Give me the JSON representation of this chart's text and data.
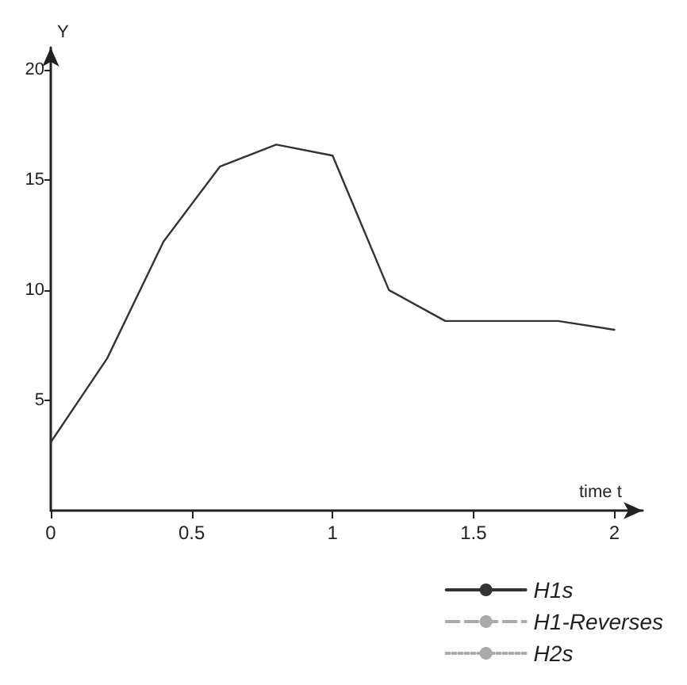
{
  "chart_data": {
    "type": "line",
    "xlabel": "time t",
    "ylabel": "Y",
    "x": [
      0,
      0.2,
      0.4,
      0.6,
      0.8,
      1.0,
      1.2,
      1.4,
      1.8,
      2.0
    ],
    "series": [
      {
        "name": "H1s",
        "color": "#333333",
        "line_style": "solid",
        "values": [
          3.1,
          6.9,
          12.2,
          15.6,
          16.6,
          16.1,
          10.0,
          8.6,
          8.6,
          8.2
        ]
      },
      {
        "name": "H1-Reverses",
        "color": "#aaaaaa",
        "line_style": "dashed",
        "values": [
          null,
          null,
          null,
          null,
          null,
          null,
          null,
          null,
          null,
          null
        ]
      },
      {
        "name": "H2s",
        "color": "#aaaaaa",
        "line_style": "dotted",
        "values": [
          null,
          null,
          null,
          null,
          null,
          null,
          null,
          null,
          null,
          null
        ]
      }
    ],
    "xlim": [
      0,
      2.1
    ],
    "ylim": [
      0,
      21
    ],
    "xticks": [
      0,
      0.5,
      1,
      1.5,
      2
    ],
    "yticks": [
      5,
      10,
      15,
      20
    ],
    "grid": false,
    "legend": "bottom right",
    "marker": "none"
  }
}
